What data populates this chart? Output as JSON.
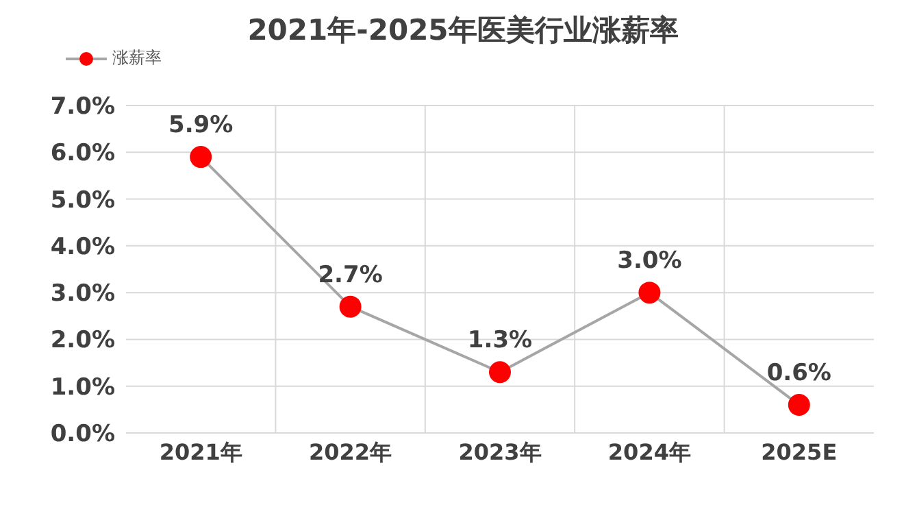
{
  "chart_data": {
    "type": "line",
    "title": "2021年-2025年医美行业涨薪率",
    "categories": [
      "2021年",
      "2022年",
      "2023年",
      "2024年",
      "2025E"
    ],
    "series": [
      {
        "name": "涨薪率",
        "color": "#a6a6a6",
        "colors": [
          "#ff0000",
          "#ff0000",
          "#ff0000",
          "#ff0000",
          "#ff0000"
        ],
        "values": [
          5.9,
          2.7,
          1.3,
          3.0,
          0.6
        ],
        "value_labels": [
          "5.9%",
          "2.7%",
          "1.3%",
          "3.0%",
          "0.6%"
        ]
      }
    ],
    "ylim": [
      0,
      7
    ],
    "yticks": [
      {
        "value": 0,
        "label": "0.0%"
      },
      {
        "value": 1,
        "label": "1.0%"
      },
      {
        "value": 2,
        "label": "2.0%"
      },
      {
        "value": 3,
        "label": "3.0%"
      },
      {
        "value": 4,
        "label": "4.0%"
      },
      {
        "value": 5,
        "label": "5.0%"
      },
      {
        "value": 6,
        "label": "6.0%"
      },
      {
        "value": 7,
        "label": "7.0%"
      }
    ],
    "grid": true,
    "legend": "top left",
    "marker": "circle",
    "line_style": "solid"
  }
}
